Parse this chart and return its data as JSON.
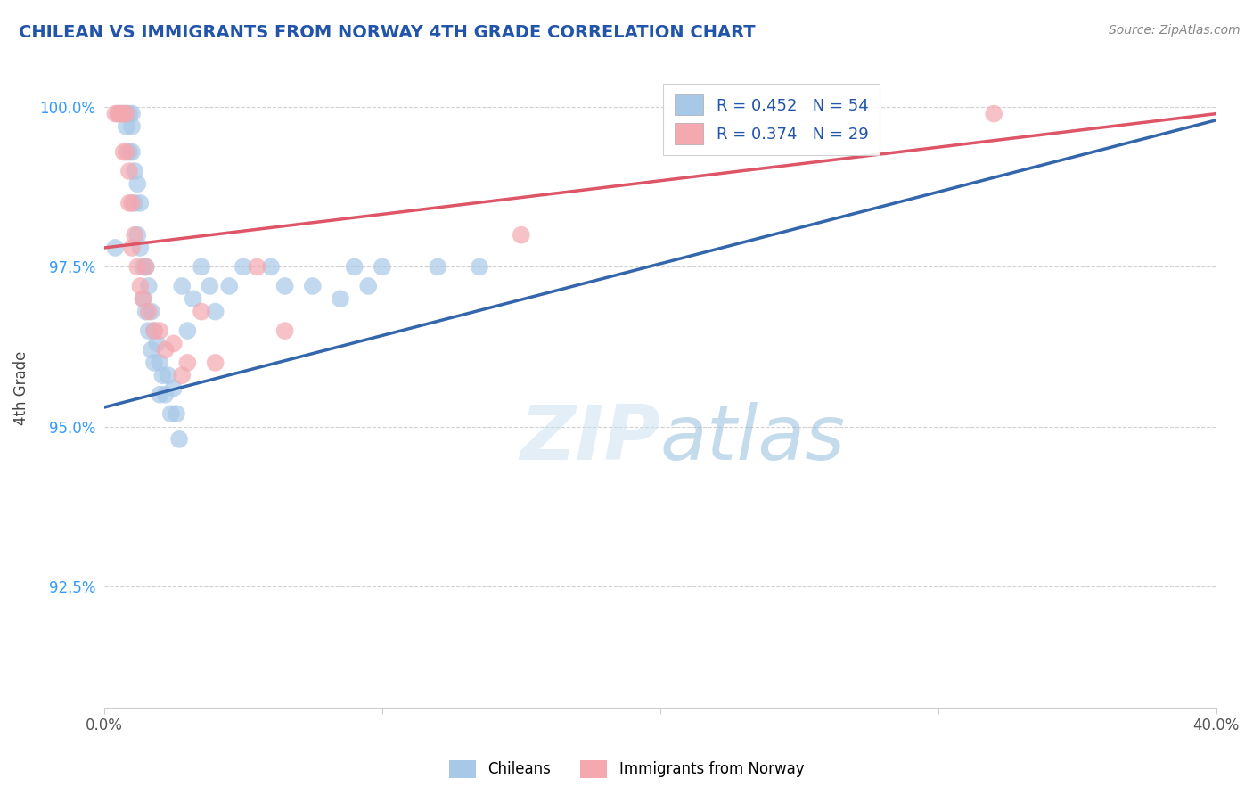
{
  "title": "CHILEAN VS IMMIGRANTS FROM NORWAY 4TH GRADE CORRELATION CHART",
  "source": "Source: ZipAtlas.com",
  "ylabel": "4th Grade",
  "legend_label1": "Chileans",
  "legend_label2": "Immigrants from Norway",
  "r1": 0.452,
  "n1": 54,
  "r2": 0.374,
  "n2": 29,
  "xlim": [
    0.0,
    0.4
  ],
  "ylim": [
    0.906,
    1.006
  ],
  "yticks": [
    0.925,
    0.95,
    0.975,
    1.0
  ],
  "ytick_labels": [
    "92.5%",
    "95.0%",
    "97.5%",
    "100.0%"
  ],
  "xticks": [
    0.0,
    0.1,
    0.2,
    0.3,
    0.4
  ],
  "xtick_labels": [
    "0.0%",
    "",
    "",
    "",
    "40.0%"
  ],
  "color_blue": "#A8C8E8",
  "color_pink": "#F4A8B0",
  "color_blue_line": "#3366AA",
  "color_pink_line": "#DD5566",
  "grid_color": "#CCCCCC",
  "background_color": "#FFFFFF",
  "blue_x": [
    0.004,
    0.005,
    0.006,
    0.007,
    0.008,
    0.008,
    0.009,
    0.009,
    0.01,
    0.01,
    0.01,
    0.011,
    0.011,
    0.012,
    0.012,
    0.013,
    0.013,
    0.014,
    0.014,
    0.015,
    0.015,
    0.016,
    0.016,
    0.017,
    0.017,
    0.018,
    0.018,
    0.019,
    0.02,
    0.02,
    0.021,
    0.022,
    0.023,
    0.024,
    0.025,
    0.026,
    0.027,
    0.028,
    0.03,
    0.032,
    0.035,
    0.038,
    0.04,
    0.045,
    0.05,
    0.06,
    0.065,
    0.075,
    0.085,
    0.09,
    0.095,
    0.1,
    0.12,
    0.135
  ],
  "blue_y": [
    0.978,
    0.999,
    0.999,
    0.999,
    0.999,
    0.997,
    0.993,
    0.999,
    0.999,
    0.997,
    0.993,
    0.99,
    0.985,
    0.988,
    0.98,
    0.985,
    0.978,
    0.975,
    0.97,
    0.975,
    0.968,
    0.972,
    0.965,
    0.968,
    0.962,
    0.965,
    0.96,
    0.963,
    0.96,
    0.955,
    0.958,
    0.955,
    0.958,
    0.952,
    0.956,
    0.952,
    0.948,
    0.972,
    0.965,
    0.97,
    0.975,
    0.972,
    0.968,
    0.972,
    0.975,
    0.975,
    0.972,
    0.972,
    0.97,
    0.975,
    0.972,
    0.975,
    0.975,
    0.975
  ],
  "pink_x": [
    0.004,
    0.005,
    0.006,
    0.007,
    0.007,
    0.008,
    0.008,
    0.009,
    0.009,
    0.01,
    0.01,
    0.011,
    0.012,
    0.013,
    0.014,
    0.015,
    0.016,
    0.018,
    0.02,
    0.022,
    0.025,
    0.028,
    0.03,
    0.035,
    0.04,
    0.055,
    0.065,
    0.15,
    0.32
  ],
  "pink_y": [
    0.999,
    0.999,
    0.999,
    0.999,
    0.993,
    0.999,
    0.993,
    0.99,
    0.985,
    0.985,
    0.978,
    0.98,
    0.975,
    0.972,
    0.97,
    0.975,
    0.968,
    0.965,
    0.965,
    0.962,
    0.963,
    0.958,
    0.96,
    0.968,
    0.96,
    0.975,
    0.965,
    0.98,
    0.999
  ],
  "blue_trendline_x": [
    0.0,
    0.4
  ],
  "blue_trendline_y": [
    0.953,
    0.998
  ],
  "pink_trendline_x": [
    0.0,
    0.4
  ],
  "pink_trendline_y": [
    0.978,
    0.999
  ]
}
